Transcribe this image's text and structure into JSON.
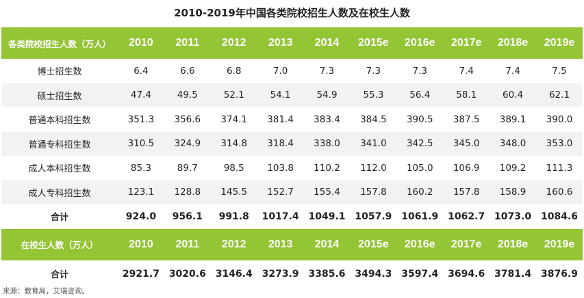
{
  "title": "2010-2019年中国各类院校招生人数及在校生人数",
  "source": "来源：教育局，艾瑞咨询。",
  "chart_data": {
    "type": "table",
    "title": "2010-2019年中国各类院校招生人数及在校生人数",
    "sections": [
      {
        "header": "各类院校招生人数（万人）",
        "columns": [
          "2010",
          "2011",
          "2012",
          "2013",
          "2014",
          "2015e",
          "2016e",
          "2017e",
          "2018e",
          "2019e"
        ],
        "rows": [
          {
            "label": "博士招生数",
            "values": [
              "6.4",
              "6.6",
              "6.8",
              "7.0",
              "7.3",
              "7.3",
              "7.3",
              "7.4",
              "7.4",
              "7.5"
            ]
          },
          {
            "label": "硕士招生数",
            "values": [
              "47.4",
              "49.5",
              "52.1",
              "54.1",
              "54.9",
              "55.3",
              "56.4",
              "58.1",
              "60.4",
              "62.1"
            ]
          },
          {
            "label": "普通本科招生数",
            "values": [
              "351.3",
              "356.6",
              "374.1",
              "381.4",
              "383.4",
              "384.5",
              "390.5",
              "387.5",
              "389.1",
              "390.0"
            ]
          },
          {
            "label": "普通专科招生数",
            "values": [
              "310.5",
              "324.9",
              "314.8",
              "318.4",
              "338.0",
              "341.0",
              "342.5",
              "345.0",
              "348.0",
              "353.0"
            ]
          },
          {
            "label": "成人本科招生数",
            "values": [
              "85.3",
              "89.7",
              "98.5",
              "103.8",
              "110.2",
              "112.0",
              "105.0",
              "106.9",
              "109.2",
              "111.3"
            ]
          },
          {
            "label": "成人专科招生数",
            "values": [
              "123.1",
              "128.8",
              "145.5",
              "152.7",
              "155.4",
              "157.8",
              "160.2",
              "157.8",
              "158.9",
              "160.6"
            ]
          },
          {
            "label": "合计",
            "values": [
              "924.0",
              "956.1",
              "991.8",
              "1017.4",
              "1049.1",
              "1057.9",
              "1061.9",
              "1062.7",
              "1073.0",
              "1084.6"
            ]
          }
        ]
      },
      {
        "header": "在校生人数（万人）",
        "columns": [
          "2010",
          "2011",
          "2012",
          "2013",
          "2014",
          "2015e",
          "2016e",
          "2017e",
          "2018e",
          "2019e"
        ],
        "rows": [
          {
            "label": "合计",
            "values": [
              "2921.7",
              "3020.6",
              "3146.4",
              "3273.9",
              "3385.6",
              "3494.3",
              "3597.4",
              "3694.6",
              "3781.4",
              "3876.9"
            ]
          }
        ]
      }
    ]
  },
  "colors": {
    "header_bg": "#93c535",
    "stripe_bg": "#f2f2f2",
    "header_text": "#ffffff"
  }
}
